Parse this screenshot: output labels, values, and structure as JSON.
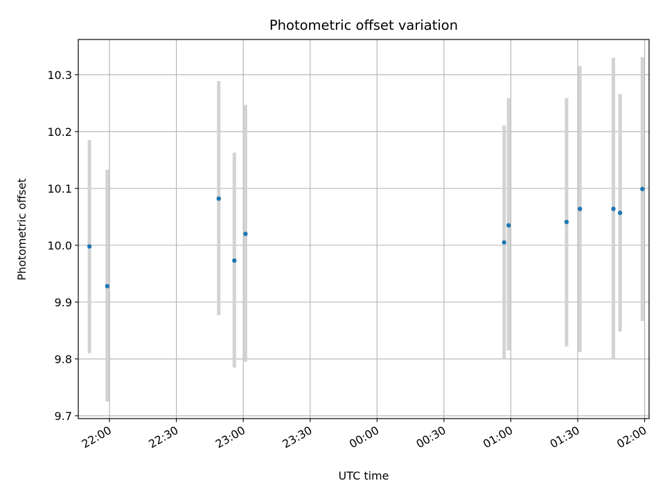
{
  "chart_data": {
    "type": "scatter",
    "title": "Photometric offset variation",
    "xlabel": "UTC time",
    "ylabel": "Photometric offset",
    "grid": true,
    "x_axis": {
      "type": "time",
      "range": [
        "21:46",
        "02:02"
      ],
      "ticks": [
        "22:00",
        "22:30",
        "23:00",
        "23:30",
        "00:00",
        "00:30",
        "01:00",
        "01:30",
        "02:00"
      ]
    },
    "y_axis": {
      "range": [
        9.695,
        10.362
      ],
      "ticks": [
        "9.7",
        "9.8",
        "9.9",
        "10.0",
        "10.1",
        "10.2",
        "10.3"
      ]
    },
    "colors": {
      "points": "#1f77b4",
      "errorbars": "#d3d3d3",
      "grid": "#b0b0b0"
    },
    "points": [
      {
        "time": "21:51",
        "y": 9.998,
        "ymin": 9.81,
        "ymax": 10.185
      },
      {
        "time": "21:59",
        "y": 9.928,
        "ymin": 9.725,
        "ymax": 10.133
      },
      {
        "time": "22:49",
        "y": 10.082,
        "ymin": 9.877,
        "ymax": 10.289
      },
      {
        "time": "22:56",
        "y": 9.973,
        "ymin": 9.785,
        "ymax": 10.163
      },
      {
        "time": "23:01",
        "y": 10.02,
        "ymin": 9.795,
        "ymax": 10.247
      },
      {
        "time": "00:57",
        "y": 10.005,
        "ymin": 9.8,
        "ymax": 10.211
      },
      {
        "time": "00:59",
        "y": 10.035,
        "ymin": 9.815,
        "ymax": 10.259
      },
      {
        "time": "01:25",
        "y": 10.041,
        "ymin": 9.822,
        "ymax": 10.259
      },
      {
        "time": "01:31",
        "y": 10.064,
        "ymin": 9.812,
        "ymax": 10.315
      },
      {
        "time": "01:46",
        "y": 10.064,
        "ymin": 9.8,
        "ymax": 10.33
      },
      {
        "time": "01:49",
        "y": 10.057,
        "ymin": 9.848,
        "ymax": 10.266
      },
      {
        "time": "01:59",
        "y": 10.099,
        "ymin": 9.867,
        "ymax": 10.331
      }
    ]
  }
}
